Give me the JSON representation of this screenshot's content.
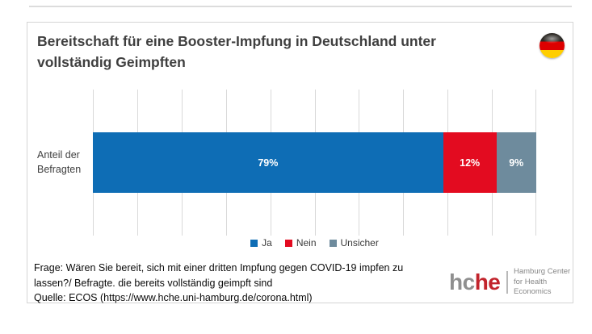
{
  "chart_data": {
    "type": "bar",
    "orientation": "horizontal-stacked",
    "title": "Bereitschaft für eine Booster-Impfung in Deutschland unter vollständig Geimpften",
    "categories": [
      "Anteil der Befragten"
    ],
    "series": [
      {
        "name": "Ja",
        "value": 79,
        "label": "79%",
        "color": "#0e6db5"
      },
      {
        "name": "Nein",
        "value": 12,
        "label": "12%",
        "color": "#e30b20"
      },
      {
        "name": "Unsicher",
        "value": 9,
        "label": "9%",
        "color": "#6e8b9d"
      }
    ],
    "xlim": [
      0,
      100
    ],
    "gridlines_every_percent": 10,
    "grid": true,
    "legend_position": "bottom-center"
  },
  "category_label": {
    "line1": "Anteil der",
    "line2": "Befragten"
  },
  "flag": {
    "country": "germany",
    "colors": {
      "black": "#2d2a26",
      "red": "#dd0000",
      "gold": "#ffce00"
    }
  },
  "footer": {
    "question_line1": "Frage: Wären Sie bereit, sich mit einer dritten Impfung gegen COVID-19 impfen zu",
    "question_line2": "lassen?/ Befragte. die bereits vollständig geimpft sind",
    "source": "Quelle: ECOS (https://www.hche.uni-hamburg.de/corona.html)"
  },
  "logo": {
    "part1": "hc",
    "part2": "he",
    "subtitle_line1": "Hamburg Center",
    "subtitle_line2": "for Health Economics",
    "gray": "#8f8f8f",
    "red": "#c2242c"
  }
}
